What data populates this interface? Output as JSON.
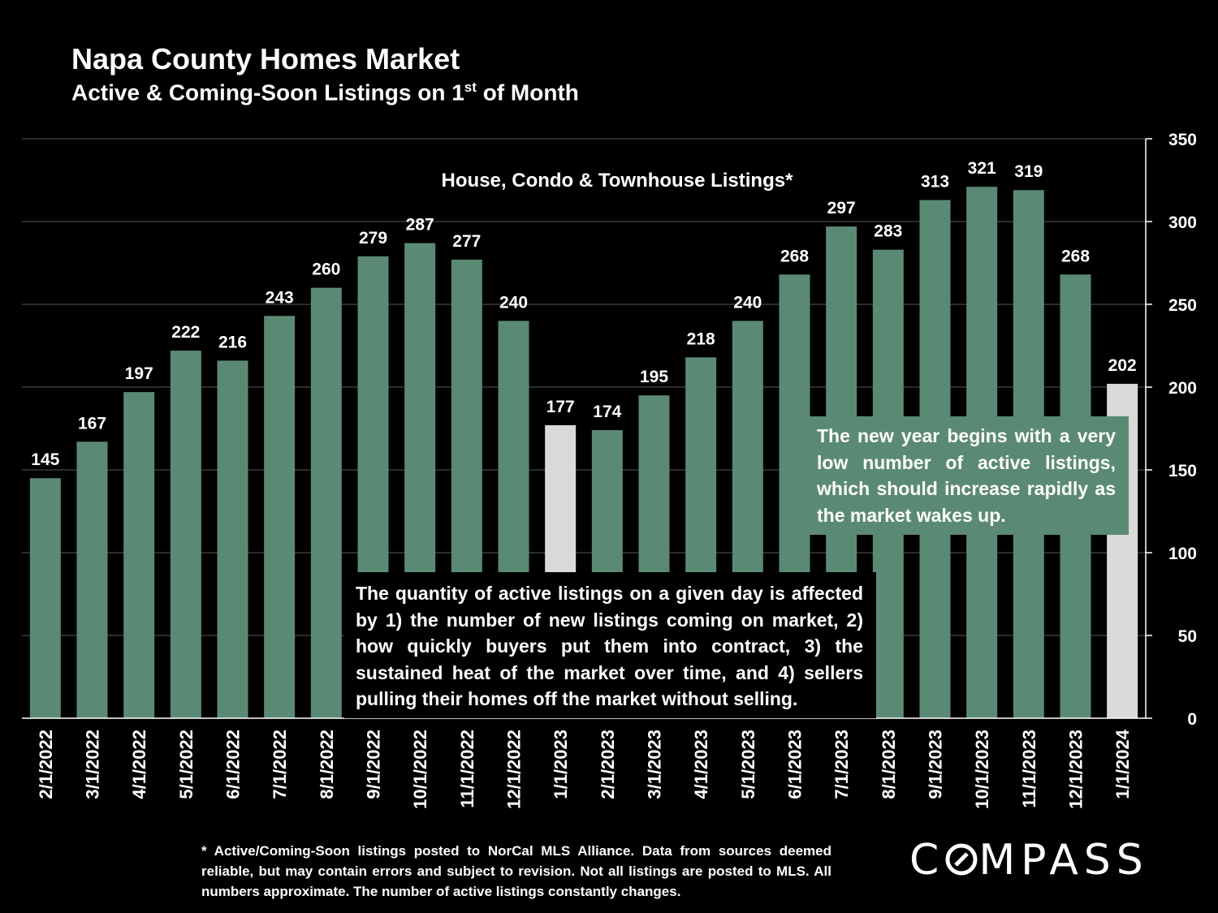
{
  "title": "Napa County Homes Market",
  "subtitle": {
    "main": "Active & Coming-Soon Listings on 1",
    "sup": "st",
    "rest": " of Month"
  },
  "chart_data": {
    "type": "bar",
    "title": "House, Condo & Townhouse Listings*",
    "xlabel": "",
    "ylabel": "",
    "ylim": [
      0,
      350
    ],
    "yticks": [
      0,
      50,
      100,
      150,
      200,
      250,
      300,
      350
    ],
    "y_axis_position": "right",
    "grid": true,
    "categories": [
      "2/1/2022",
      "3/1/2022",
      "4/1/2022",
      "5/1/2022",
      "6/1/2022",
      "7/1/2022",
      "8/1/2022",
      "9/1/2022",
      "10/1/2022",
      "11/1/2022",
      "12/1/2022",
      "1/1/2023",
      "2/1/2023",
      "3/1/2023",
      "4/1/2023",
      "5/1/2023",
      "6/1/2023",
      "7/1/2023",
      "8/1/2023",
      "9/1/2023",
      "10/1/2023",
      "11/1/2023",
      "12/1/2023",
      "1/1/2024"
    ],
    "values": [
      145,
      167,
      197,
      222,
      216,
      243,
      260,
      279,
      287,
      277,
      240,
      177,
      174,
      195,
      218,
      240,
      268,
      297,
      283,
      313,
      321,
      319,
      268,
      202
    ],
    "highlight": [
      "1/1/2023",
      "1/1/2024"
    ],
    "colors": {
      "bar": "#5b8a74",
      "highlight": "#d9d9d9",
      "grid": "#3a3a3a",
      "axis": "#ffffff"
    }
  },
  "notes": {
    "main": "The quantity of active listings on a given day is affected by 1) the number of new listings coming on market, 2) how quickly buyers put them into contract, 3) the sustained heat of the market over time, and 4) sellers pulling their homes off the market without selling.",
    "side": "The new year begins with a very low number of active listings, which should increase rapidly as the market wakes up."
  },
  "footnote": "* Active/Coming-Soon listings posted to NorCal MLS Alliance.  Data from sources deemed reliable, but may contain errors and subject to revision.  Not all listings are posted to MLS. All numbers approximate. The number of active listings constantly changes.",
  "logo": {
    "left": "C",
    "right": "MPASS"
  }
}
